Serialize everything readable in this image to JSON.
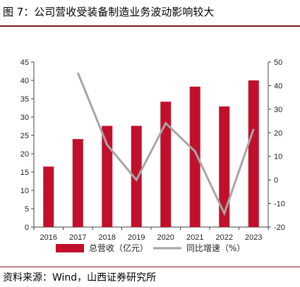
{
  "header": {
    "title": "图 7：公司营收受装备制造业务波动影响较大"
  },
  "footer": {
    "source": "资料来源：Wind，山西证券研究所"
  },
  "colors": {
    "bar": "#c0102c",
    "line": "#a6a6a6",
    "rule": "#7f1418"
  },
  "chart_data": {
    "type": "bar",
    "categories": [
      "2016",
      "2017",
      "2018",
      "2019",
      "2020",
      "2021",
      "2022",
      "2023"
    ],
    "series": [
      {
        "name": "总营收（亿元）",
        "type": "bar",
        "axis": "left",
        "values": [
          16.5,
          24.0,
          27.6,
          27.6,
          34.2,
          38.3,
          32.9,
          40.0
        ]
      },
      {
        "name": "同比增速（%）",
        "type": "line",
        "axis": "right",
        "values": [
          null,
          45.5,
          14.9,
          0.0,
          24.1,
          12.1,
          -14.2,
          21.6
        ]
      }
    ],
    "y_left": {
      "min": 0,
      "max": 45,
      "ticks": [
        "0",
        "5",
        "10",
        "15",
        "20",
        "25",
        "30",
        "35",
        "40",
        "45"
      ]
    },
    "y_right": {
      "min": -20,
      "max": 50,
      "ticks": [
        "-20",
        "-10",
        "0",
        "10",
        "20",
        "30",
        "40",
        "50"
      ]
    },
    "grid": false,
    "legend_position": "bottom"
  }
}
